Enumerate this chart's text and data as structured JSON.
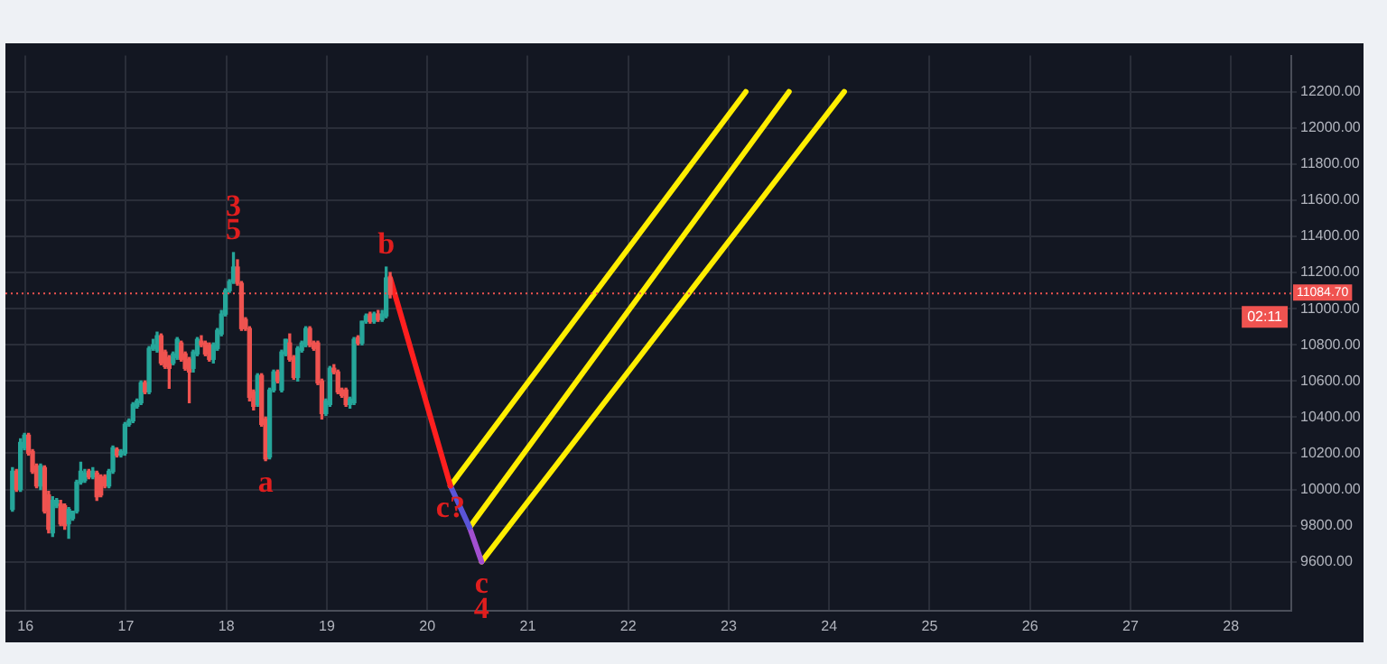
{
  "chart_data": {
    "type": "candlestick",
    "x": [
      15.87,
      15.91,
      15.95,
      15.99,
      16.03,
      16.07,
      16.11,
      16.15,
      16.19,
      16.23,
      16.27,
      16.31,
      16.35,
      16.39,
      16.43,
      16.47,
      16.51,
      16.55,
      16.59,
      16.63,
      16.67,
      16.71,
      16.75,
      16.79,
      16.83,
      16.87,
      16.91,
      16.95,
      16.99,
      17.03,
      17.07,
      17.11,
      17.15,
      17.19,
      17.23,
      17.27,
      17.31,
      17.35,
      17.39,
      17.43,
      17.47,
      17.51,
      17.55,
      17.59,
      17.63,
      17.67,
      17.71,
      17.75,
      17.79,
      17.83,
      17.87,
      17.91,
      17.95,
      17.99,
      18.03,
      18.07,
      18.11,
      18.15,
      18.19,
      18.23,
      18.27,
      18.31,
      18.35,
      18.39,
      18.43,
      18.47,
      18.51,
      18.55,
      18.59,
      18.63,
      18.67,
      18.71,
      18.75,
      18.79,
      18.83,
      18.87,
      18.91,
      18.95,
      18.99,
      19.03,
      19.07,
      19.11,
      19.15,
      19.19,
      19.23,
      19.27,
      19.31,
      19.35,
      19.39,
      19.43,
      19.47,
      19.51,
      19.55,
      19.59,
      19.63
    ],
    "ohlc": [
      [
        9890,
        10120,
        9880,
        10100
      ],
      [
        10100,
        10110,
        9990,
        10000
      ],
      [
        10000,
        10280,
        9990,
        10260
      ],
      [
        10230,
        10310,
        10220,
        10300
      ],
      [
        10300,
        10310,
        10190,
        10200
      ],
      [
        10210,
        10220,
        10090,
        10100
      ],
      [
        10130,
        10140,
        10010,
        10020
      ],
      [
        10020,
        10140,
        10000,
        10130
      ],
      [
        10120,
        10130,
        9870,
        9880
      ],
      [
        9970,
        9990,
        9760,
        9780
      ],
      [
        9760,
        9960,
        9740,
        9940
      ],
      [
        9910,
        9950,
        9900,
        9940
      ],
      [
        9920,
        9940,
        9800,
        9810
      ],
      [
        9910,
        9920,
        9780,
        9800
      ],
      [
        9810,
        9900,
        9730,
        9890
      ],
      [
        9840,
        9880,
        9830,
        9880
      ],
      [
        9880,
        10050,
        9870,
        10040
      ],
      [
        10040,
        10150,
        10030,
        10100
      ],
      [
        10050,
        10110,
        10040,
        10090
      ],
      [
        10100,
        10110,
        10060,
        10070
      ],
      [
        10070,
        10120,
        10060,
        10100
      ],
      [
        10090,
        10100,
        9940,
        9960
      ],
      [
        10070,
        10080,
        9960,
        9970
      ],
      [
        10070,
        10080,
        10010,
        10020
      ],
      [
        10020,
        10110,
        10010,
        10100
      ],
      [
        10100,
        10240,
        10090,
        10230
      ],
      [
        10220,
        10230,
        10180,
        10190
      ],
      [
        10190,
        10220,
        10180,
        10210
      ],
      [
        10200,
        10370,
        10190,
        10360
      ],
      [
        10360,
        10390,
        10350,
        10380
      ],
      [
        10380,
        10480,
        10370,
        10470
      ],
      [
        10460,
        10500,
        10450,
        10490
      ],
      [
        10480,
        10600,
        10470,
        10590
      ],
      [
        10590,
        10600,
        10530,
        10540
      ],
      [
        10540,
        10790,
        10530,
        10780
      ],
      [
        10780,
        10830,
        10770,
        10800
      ],
      [
        10770,
        10870,
        10760,
        10850
      ],
      [
        10850,
        10860,
        10690,
        10700
      ],
      [
        10760,
        10770,
        10670,
        10680
      ],
      [
        10730,
        10740,
        10560,
        10670
      ],
      [
        10700,
        10760,
        10690,
        10750
      ],
      [
        10730,
        10840,
        10720,
        10830
      ],
      [
        10810,
        10820,
        10710,
        10720
      ],
      [
        10750,
        10760,
        10660,
        10670
      ],
      [
        10720,
        10730,
        10480,
        10650
      ],
      [
        10670,
        10770,
        10650,
        10760
      ],
      [
        10750,
        10840,
        10740,
        10830
      ],
      [
        10820,
        10850,
        10790,
        10800
      ],
      [
        10810,
        10820,
        10740,
        10750
      ],
      [
        10800,
        10810,
        10710,
        10720
      ],
      [
        10720,
        10810,
        10700,
        10800
      ],
      [
        10780,
        10890,
        10770,
        10880
      ],
      [
        10860,
        10990,
        10850,
        10970
      ],
      [
        10970,
        11110,
        10960,
        11100
      ],
      [
        11100,
        11160,
        11090,
        11150
      ],
      [
        11150,
        11310,
        11140,
        11230
      ],
      [
        11230,
        11270,
        11130,
        11140
      ],
      [
        11140,
        11150,
        10880,
        10890
      ],
      [
        10940,
        10950,
        10880,
        10890
      ],
      [
        10890,
        10900,
        10490,
        10510
      ],
      [
        10540,
        10550,
        10440,
        10460
      ],
      [
        10470,
        10640,
        10460,
        10630
      ],
      [
        10630,
        10640,
        10350,
        10360
      ],
      [
        10390,
        10400,
        10160,
        10170
      ],
      [
        10180,
        10560,
        10170,
        10550
      ],
      [
        10550,
        10660,
        10540,
        10650
      ],
      [
        10650,
        10660,
        10590,
        10600
      ],
      [
        10550,
        10770,
        10540,
        10760
      ],
      [
        10750,
        10830,
        10740,
        10830
      ],
      [
        10810,
        10860,
        10710,
        10720
      ],
      [
        10730,
        10740,
        10610,
        10620
      ],
      [
        10620,
        10790,
        10600,
        10780
      ],
      [
        10770,
        10820,
        10760,
        10810
      ],
      [
        10800,
        10900,
        10790,
        10890
      ],
      [
        10890,
        10900,
        10790,
        10800
      ],
      [
        10810,
        10820,
        10770,
        10780
      ],
      [
        10810,
        10820,
        10580,
        10590
      ],
      [
        10600,
        10610,
        10390,
        10420
      ],
      [
        10420,
        10500,
        10410,
        10490
      ],
      [
        10470,
        10680,
        10460,
        10670
      ],
      [
        10670,
        10690,
        10640,
        10650
      ],
      [
        10650,
        10660,
        10530,
        10540
      ],
      [
        10550,
        10560,
        10510,
        10520
      ],
      [
        10550,
        10560,
        10460,
        10470
      ],
      [
        10470,
        10510,
        10450,
        10500
      ],
      [
        10480,
        10840,
        10470,
        10830
      ],
      [
        10840,
        10850,
        10800,
        10810
      ],
      [
        10810,
        10930,
        10800,
        10930
      ],
      [
        10930,
        10970,
        10920,
        10960
      ],
      [
        10970,
        10980,
        10920,
        10930
      ],
      [
        10930,
        10980,
        10920,
        10970
      ],
      [
        10970,
        10990,
        10930,
        10940
      ],
      [
        10940,
        10990,
        10930,
        10970
      ],
      [
        10960,
        11230,
        10950,
        11170
      ],
      [
        11170,
        11200,
        11060,
        11080
      ]
    ],
    "colors": [
      "#26a69a",
      "#ef5350",
      "#26a69a",
      "#26a69a",
      "#ef5350",
      "#ef5350",
      "#ef5350",
      "#26a69a",
      "#ef5350",
      "#ef5350",
      "#26a69a",
      "#26a69a",
      "#ef5350",
      "#ef5350",
      "#26a69a",
      "#26a69a",
      "#26a69a",
      "#26a69a",
      "#26a69a",
      "#ef5350",
      "#26a69a",
      "#ef5350",
      "#ef5350",
      "#ef5350",
      "#26a69a",
      "#26a69a",
      "#ef5350",
      "#26a69a",
      "#26a69a",
      "#26a69a",
      "#26a69a",
      "#26a69a",
      "#26a69a",
      "#ef5350",
      "#26a69a",
      "#26a69a",
      "#26a69a",
      "#ef5350",
      "#ef5350",
      "#ef5350",
      "#26a69a",
      "#26a69a",
      "#ef5350",
      "#ef5350",
      "#ef5350",
      "#26a69a",
      "#26a69a",
      "#ef5350",
      "#ef5350",
      "#ef5350",
      "#26a69a",
      "#26a69a",
      "#26a69a",
      "#26a69a",
      "#26a69a",
      "#26a69a",
      "#ef5350",
      "#ef5350",
      "#ef5350",
      "#ef5350",
      "#ef5350",
      "#26a69a",
      "#ef5350",
      "#ef5350",
      "#26a69a",
      "#26a69a",
      "#ef5350",
      "#26a69a",
      "#26a69a",
      "#ef5350",
      "#ef5350",
      "#26a69a",
      "#26a69a",
      "#26a69a",
      "#ef5350",
      "#ef5350",
      "#ef5350",
      "#ef5350",
      "#26a69a",
      "#26a69a",
      "#ef5350",
      "#ef5350",
      "#ef5350",
      "#ef5350",
      "#26a69a",
      "#26a69a",
      "#ef5350",
      "#26a69a",
      "#26a69a",
      "#ef5350",
      "#26a69a",
      "#ef5350",
      "#26a69a",
      "#26a69a",
      "#ef5350"
    ],
    "series": [
      {
        "type": "line",
        "color": "#ff1f1f",
        "x": [
          19.63,
          20.23
        ],
        "values": [
          11170,
          10020
        ]
      },
      {
        "type": "line",
        "color": "#5a55d8",
        "x": [
          20.23,
          20.42
        ],
        "values": [
          10020,
          9790
        ]
      },
      {
        "type": "line",
        "color": "#a24fd0",
        "x": [
          20.42,
          20.54
        ],
        "values": [
          9790,
          9600
        ]
      },
      {
        "type": "line",
        "color": "#ffee00",
        "x": [
          20.23,
          23.17
        ],
        "values": [
          10020,
          12200
        ]
      },
      {
        "type": "line",
        "color": "#ffee00",
        "x": [
          20.42,
          23.6
        ],
        "values": [
          9790,
          12200
        ]
      },
      {
        "type": "line",
        "color": "#ffee00",
        "x": [
          20.54,
          24.15
        ],
        "values": [
          9600,
          12200
        ]
      }
    ],
    "xlim": [
      15.8,
      28.6
    ],
    "xticks": [
      16,
      17,
      18,
      19,
      20,
      21,
      22,
      23,
      24,
      25,
      26,
      27,
      28
    ],
    "ylim": [
      9330,
      12400
    ],
    "yticks": [
      {
        "value": 9600,
        "label": "9600.00"
      },
      {
        "value": 9800,
        "label": "9800.00"
      },
      {
        "value": 10000,
        "label": "10000.00"
      },
      {
        "value": 10200,
        "label": "10200.00"
      },
      {
        "value": 10400,
        "label": "10400.00"
      },
      {
        "value": 10600,
        "label": "10600.00"
      },
      {
        "value": 10800,
        "label": "10800.00"
      },
      {
        "value": 11000,
        "label": "11000.00"
      },
      {
        "value": 11200,
        "label": "11200.00"
      },
      {
        "value": 11400,
        "label": "11400.00"
      },
      {
        "value": 11600,
        "label": "11600.00"
      },
      {
        "value": 11800,
        "label": "11800.00"
      },
      {
        "value": 12000,
        "label": "12000.00"
      },
      {
        "value": 12200,
        "label": "12200.00"
      }
    ],
    "grid": true,
    "ref_lines": [
      {
        "axis": "y",
        "value": 11084.7,
        "label": "11084.70",
        "color": "#ef5350",
        "line_style": "dotted"
      }
    ],
    "annotations": [
      "02:11",
      {
        "text": "5",
        "x": 18.07,
        "y": 11310
      },
      {
        "text": "3",
        "x": 18.07,
        "y": 11310
      },
      {
        "text": "a",
        "x": 18.39,
        "y": 10160
      },
      {
        "text": "b",
        "x": 19.59,
        "y": 11230
      },
      {
        "text": "c?",
        "x": 20.23,
        "y": 10020
      },
      {
        "text": "c",
        "x": 20.54,
        "y": 9600
      },
      {
        "text": "4",
        "x": 20.54,
        "y": 9600
      }
    ]
  }
}
